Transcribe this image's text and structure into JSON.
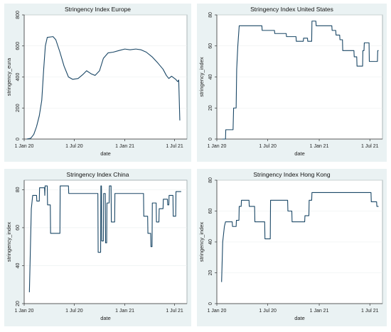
{
  "chart_data": [
    {
      "type": "line",
      "title": "Stringency Index Europe",
      "xlabel": "date",
      "ylabel": "stringency_eura",
      "xlim": [
        "2020-01-01",
        "2021-08-15"
      ],
      "ylim": [
        0,
        800
      ],
      "yticks": [
        0,
        200,
        400,
        600,
        800
      ],
      "xticks": [
        {
          "date": "2020-01-01",
          "label": "1 Jan 20"
        },
        {
          "date": "2020-07-01",
          "label": "1 Jul 20"
        },
        {
          "date": "2021-01-01",
          "label": "1 Jan 21"
        },
        {
          "date": "2021-07-01",
          "label": "1 Jul 21"
        }
      ],
      "grid": false,
      "series": [
        {
          "color": "#1a4766",
          "points": [
            [
              "2020-01-10",
              0
            ],
            [
              "2020-01-25",
              5
            ],
            [
              "2020-02-05",
              30
            ],
            [
              "2020-02-15",
              80
            ],
            [
              "2020-02-25",
              150
            ],
            [
              "2020-03-05",
              250
            ],
            [
              "2020-03-12",
              450
            ],
            [
              "2020-03-18",
              600
            ],
            [
              "2020-03-25",
              655
            ],
            [
              "2020-04-15",
              660
            ],
            [
              "2020-04-25",
              640
            ],
            [
              "2020-05-10",
              560
            ],
            [
              "2020-05-25",
              470
            ],
            [
              "2020-06-10",
              400
            ],
            [
              "2020-06-25",
              385
            ],
            [
              "2020-07-15",
              390
            ],
            [
              "2020-08-01",
              415
            ],
            [
              "2020-08-15",
              440
            ],
            [
              "2020-09-01",
              420
            ],
            [
              "2020-09-15",
              410
            ],
            [
              "2020-10-01",
              440
            ],
            [
              "2020-10-15",
              520
            ],
            [
              "2020-11-01",
              555
            ],
            [
              "2020-11-20",
              560
            ],
            [
              "2020-12-10",
              570
            ],
            [
              "2021-01-01",
              580
            ],
            [
              "2021-01-20",
              575
            ],
            [
              "2021-02-10",
              580
            ],
            [
              "2021-03-01",
              575
            ],
            [
              "2021-03-20",
              560
            ],
            [
              "2021-04-10",
              530
            ],
            [
              "2021-05-01",
              490
            ],
            [
              "2021-05-20",
              450
            ],
            [
              "2021-06-01",
              410
            ],
            [
              "2021-06-10",
              390
            ],
            [
              "2021-06-20",
              405
            ],
            [
              "2021-07-05",
              385
            ],
            [
              "2021-07-12",
              370
            ],
            [
              "2021-07-16",
              380
            ],
            [
              "2021-07-20",
              120
            ]
          ]
        }
      ]
    },
    {
      "type": "line",
      "title": "Stringency Index United States",
      "xlabel": "date",
      "ylabel": "stringency_index",
      "xlim": [
        "2020-01-01",
        "2021-08-15"
      ],
      "ylim": [
        0,
        80
      ],
      "yticks": [
        0,
        20,
        40,
        60,
        80
      ],
      "xticks": [
        {
          "date": "2020-01-01",
          "label": "1 Jan 20"
        },
        {
          "date": "2020-07-01",
          "label": "1 Jul 20"
        },
        {
          "date": "2021-01-01",
          "label": "1 Jan 21"
        },
        {
          "date": "2021-07-01",
          "label": "1 Jul 21"
        }
      ],
      "grid": false,
      "series": [
        {
          "color": "#1a4766",
          "points": [
            [
              "2020-01-21",
              0
            ],
            [
              "2020-02-01",
              0
            ],
            [
              "2020-02-02",
              6
            ],
            [
              "2020-02-28",
              6
            ],
            [
              "2020-03-01",
              20
            ],
            [
              "2020-03-10",
              20
            ],
            [
              "2020-03-12",
              45
            ],
            [
              "2020-03-16",
              60
            ],
            [
              "2020-03-21",
              73
            ],
            [
              "2020-06-10",
              73
            ],
            [
              "2020-06-11",
              70
            ],
            [
              "2020-07-25",
              70
            ],
            [
              "2020-07-26",
              68
            ],
            [
              "2020-09-05",
              68
            ],
            [
              "2020-09-06",
              66
            ],
            [
              "2020-10-10",
              66
            ],
            [
              "2020-10-11",
              63
            ],
            [
              "2020-11-05",
              63
            ],
            [
              "2020-11-06",
              65
            ],
            [
              "2020-11-20",
              65
            ],
            [
              "2020-11-21",
              63
            ],
            [
              "2020-12-05",
              63
            ],
            [
              "2020-12-06",
              76
            ],
            [
              "2020-12-20",
              76
            ],
            [
              "2020-12-21",
              73
            ],
            [
              "2021-02-15",
              73
            ],
            [
              "2021-02-16",
              70
            ],
            [
              "2021-03-01",
              70
            ],
            [
              "2021-03-02",
              67
            ],
            [
              "2021-03-15",
              67
            ],
            [
              "2021-03-16",
              64
            ],
            [
              "2021-03-25",
              64
            ],
            [
              "2021-03-26",
              57
            ],
            [
              "2021-05-05",
              57
            ],
            [
              "2021-05-06",
              53
            ],
            [
              "2021-05-15",
              53
            ],
            [
              "2021-05-16",
              47
            ],
            [
              "2021-06-05",
              47
            ],
            [
              "2021-06-06",
              57
            ],
            [
              "2021-06-10",
              57
            ],
            [
              "2021-06-11",
              62
            ],
            [
              "2021-06-28",
              62
            ],
            [
              "2021-06-29",
              50
            ],
            [
              "2021-07-28",
              50
            ],
            [
              "2021-07-29",
              57
            ],
            [
              "2021-08-01",
              57
            ]
          ]
        }
      ]
    },
    {
      "type": "line",
      "title": "Stringency Index China",
      "xlabel": "date",
      "ylabel": "stringency_index",
      "xlim": [
        "2020-01-01",
        "2021-08-15"
      ],
      "ylim": [
        20,
        85
      ],
      "yticks": [
        20,
        40,
        60,
        80
      ],
      "xticks": [
        {
          "date": "2020-01-01",
          "label": "1 Jan 20"
        },
        {
          "date": "2020-07-01",
          "label": "1 Jul 20"
        },
        {
          "date": "2021-01-01",
          "label": "1 Jan 21"
        },
        {
          "date": "2021-07-01",
          "label": "1 Jul 21"
        }
      ],
      "grid": false,
      "series": [
        {
          "color": "#1a4766",
          "points": [
            [
              "2020-01-20",
              26
            ],
            [
              "2020-01-23",
              45
            ],
            [
              "2020-01-27",
              70
            ],
            [
              "2020-02-01",
              77
            ],
            [
              "2020-02-15",
              77
            ],
            [
              "2020-02-16",
              74
            ],
            [
              "2020-02-25",
              74
            ],
            [
              "2020-02-26",
              81
            ],
            [
              "2020-03-15",
              81
            ],
            [
              "2020-03-16",
              77
            ],
            [
              "2020-03-17",
              82
            ],
            [
              "2020-03-25",
              82
            ],
            [
              "2020-03-26",
              72
            ],
            [
              "2020-04-05",
              72
            ],
            [
              "2020-04-06",
              57
            ],
            [
              "2020-05-10",
              57
            ],
            [
              "2020-05-11",
              82
            ],
            [
              "2020-06-10",
              82
            ],
            [
              "2020-06-11",
              78
            ],
            [
              "2020-09-25",
              78
            ],
            [
              "2020-09-26",
              47
            ],
            [
              "2020-10-05",
              47
            ],
            [
              "2020-10-06",
              82
            ],
            [
              "2020-10-08",
              82
            ],
            [
              "2020-10-09",
              53
            ],
            [
              "2020-10-15",
              53
            ],
            [
              "2020-10-16",
              78
            ],
            [
              "2020-10-22",
              78
            ],
            [
              "2020-10-23",
              52
            ],
            [
              "2020-10-27",
              52
            ],
            [
              "2020-10-28",
              73
            ],
            [
              "2020-11-05",
              73
            ],
            [
              "2020-11-06",
              82
            ],
            [
              "2020-11-12",
              82
            ],
            [
              "2020-11-13",
              63
            ],
            [
              "2020-11-25",
              63
            ],
            [
              "2020-11-26",
              78
            ],
            [
              "2021-03-10",
              78
            ],
            [
              "2021-03-11",
              66
            ],
            [
              "2021-03-25",
              66
            ],
            [
              "2021-03-26",
              57
            ],
            [
              "2021-04-05",
              57
            ],
            [
              "2021-04-06",
              50
            ],
            [
              "2021-04-10",
              50
            ],
            [
              "2021-04-11",
              73
            ],
            [
              "2021-04-25",
              73
            ],
            [
              "2021-04-26",
              63
            ],
            [
              "2021-05-05",
              63
            ],
            [
              "2021-05-06",
              70
            ],
            [
              "2021-05-20",
              70
            ],
            [
              "2021-05-21",
              75
            ],
            [
              "2021-06-05",
              75
            ],
            [
              "2021-06-06",
              72
            ],
            [
              "2021-06-10",
              72
            ],
            [
              "2021-06-11",
              77
            ],
            [
              "2021-06-25",
              77
            ],
            [
              "2021-06-26",
              66
            ],
            [
              "2021-07-05",
              66
            ],
            [
              "2021-07-06",
              79
            ],
            [
              "2021-07-25",
              79
            ]
          ]
        }
      ]
    },
    {
      "type": "line",
      "title": "Stringency Index Hong Kong",
      "xlabel": "date",
      "ylabel": "stringency_index",
      "xlim": [
        "2020-01-01",
        "2021-08-15"
      ],
      "ylim": [
        0,
        80
      ],
      "yticks": [
        0,
        20,
        40,
        60,
        80
      ],
      "xticks": [
        {
          "date": "2020-01-01",
          "label": "1 Jan 20"
        },
        {
          "date": "2020-07-01",
          "label": "1 Jul 20"
        },
        {
          "date": "2021-01-01",
          "label": "1 Jan 21"
        },
        {
          "date": "2021-07-01",
          "label": "1 Jul 21"
        }
      ],
      "grid": false,
      "series": [
        {
          "color": "#1a4766",
          "points": [
            [
              "2020-01-18",
              14
            ],
            [
              "2020-01-22",
              40
            ],
            [
              "2020-01-28",
              50
            ],
            [
              "2020-02-01",
              53
            ],
            [
              "2020-02-25",
              53
            ],
            [
              "2020-02-26",
              50
            ],
            [
              "2020-03-10",
              50
            ],
            [
              "2020-03-11",
              54
            ],
            [
              "2020-03-20",
              54
            ],
            [
              "2020-03-21",
              63
            ],
            [
              "2020-03-28",
              63
            ],
            [
              "2020-03-29",
              67
            ],
            [
              "2020-04-25",
              67
            ],
            [
              "2020-04-26",
              63
            ],
            [
              "2020-05-15",
              63
            ],
            [
              "2020-05-16",
              53
            ],
            [
              "2020-06-20",
              53
            ],
            [
              "2020-06-21",
              42
            ],
            [
              "2020-07-10",
              42
            ],
            [
              "2020-07-11",
              67
            ],
            [
              "2020-09-10",
              67
            ],
            [
              "2020-09-11",
              60
            ],
            [
              "2020-09-25",
              60
            ],
            [
              "2020-09-26",
              53
            ],
            [
              "2020-11-10",
              53
            ],
            [
              "2020-11-11",
              57
            ],
            [
              "2020-11-25",
              57
            ],
            [
              "2020-11-26",
              67
            ],
            [
              "2020-12-05",
              67
            ],
            [
              "2020-12-06",
              72
            ],
            [
              "2021-07-05",
              72
            ],
            [
              "2021-07-06",
              66
            ],
            [
              "2021-07-25",
              66
            ],
            [
              "2021-07-26",
              63
            ],
            [
              "2021-08-01",
              63
            ]
          ]
        }
      ]
    }
  ]
}
